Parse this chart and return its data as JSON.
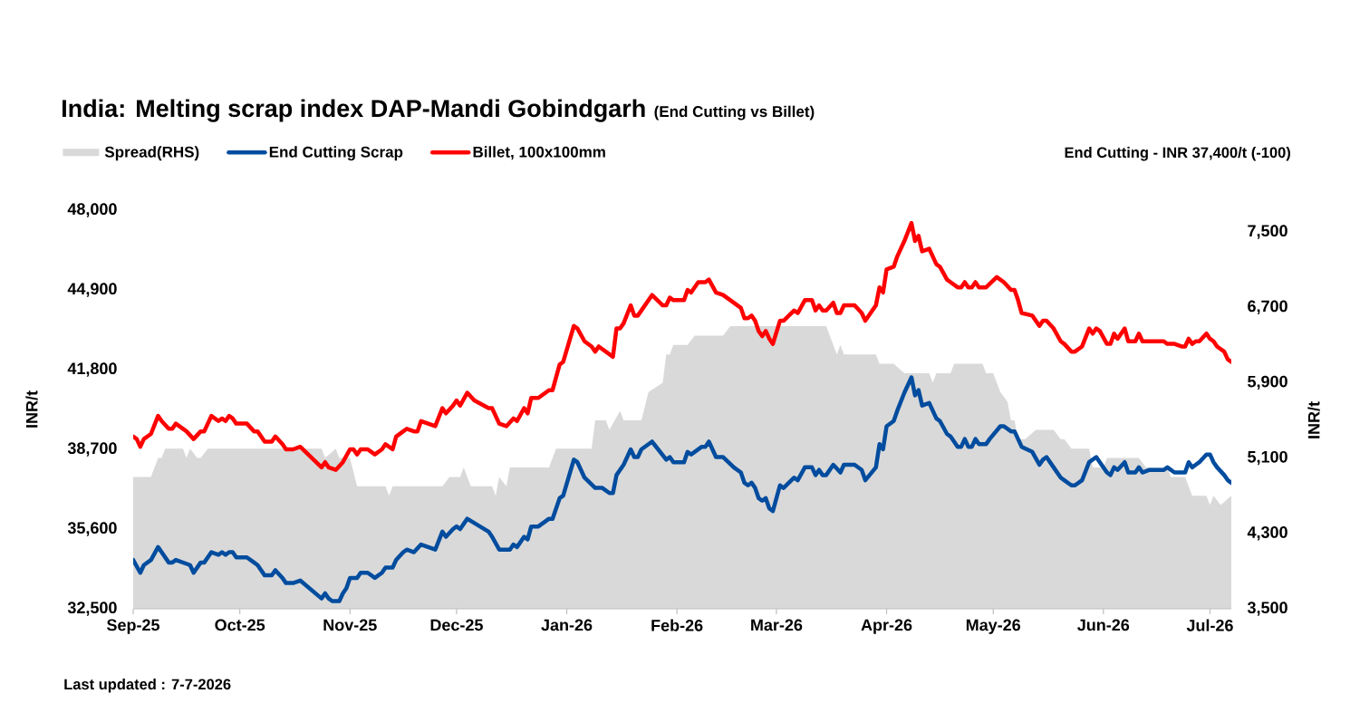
{
  "chart_data": {
    "type": "line",
    "title": "India: Melting scrap index DAP-Mandi Gobindgarh",
    "subtitle": "(End Cutting vs Billet)",
    "ylabel": "INR/t",
    "y2label": "INR/t",
    "xlim": [
      "2025-09-01",
      "2026-07-07"
    ],
    "xticks": [
      {
        "value": "2025-09-01",
        "label": "Sep-25"
      },
      {
        "value": "2025-10-01",
        "label": "Oct-25"
      },
      {
        "value": "2025-11-01",
        "label": "Nov-25"
      },
      {
        "value": "2025-12-01",
        "label": "Dec-25"
      },
      {
        "value": "2026-01-01",
        "label": "Jan-26"
      },
      {
        "value": "2026-02-01",
        "label": "Feb-26"
      },
      {
        "value": "2026-03-01",
        "label": "Mar-26"
      },
      {
        "value": "2026-04-01",
        "label": "Apr-26"
      },
      {
        "value": "2026-05-01",
        "label": "May-26"
      },
      {
        "value": "2026-06-01",
        "label": "Jun-26"
      },
      {
        "value": "2026-07-01",
        "label": "Jul-26"
      }
    ],
    "ylim": [
      32500,
      48000
    ],
    "yticks": [
      {
        "value": 32500,
        "label": "32,500"
      },
      {
        "value": 35600,
        "label": "35,600"
      },
      {
        "value": 38700,
        "label": "38,700"
      },
      {
        "value": 41800,
        "label": "41,800"
      },
      {
        "value": 44900,
        "label": "44,900"
      },
      {
        "value": 48000,
        "label": "48,000"
      }
    ],
    "y2lim": [
      3500,
      7500
    ],
    "y2ticks": [
      {
        "value": 3500,
        "label": "3,500"
      },
      {
        "value": 4300,
        "label": "4,300"
      },
      {
        "value": 5100,
        "label": "5,100"
      },
      {
        "value": 5900,
        "label": "5,900"
      },
      {
        "value": 6700,
        "label": "6,700"
      },
      {
        "value": 7500,
        "label": "7,500"
      }
    ],
    "legend": "top left",
    "series": [
      {
        "name": "Spread(RHS)",
        "type": "area",
        "axis": "y2",
        "color": "#d9d9d9",
        "x": [
          "2025-09-01",
          "2025-09-06",
          "2025-09-08",
          "2025-09-09",
          "2025-09-10",
          "2025-09-15",
          "2025-09-16",
          "2025-09-17",
          "2025-09-19",
          "2025-09-20",
          "2025-09-22",
          "2025-10-24",
          "2025-10-25",
          "2025-10-28",
          "2025-10-29",
          "2025-11-01",
          "2025-11-03",
          "2025-11-11",
          "2025-11-12",
          "2025-11-13",
          "2025-11-27",
          "2025-11-29",
          "2025-12-02",
          "2025-12-03",
          "2025-12-05",
          "2025-12-11",
          "2025-12-12",
          "2025-12-13",
          "2025-12-15",
          "2025-12-16",
          "2025-12-27",
          "2025-12-29",
          "2026-01-08",
          "2026-01-09",
          "2026-01-12",
          "2026-01-13",
          "2026-01-16",
          "2026-01-17",
          "2026-01-22",
          "2026-01-24",
          "2026-01-28",
          "2026-01-29",
          "2026-01-30",
          "2026-01-31",
          "2026-02-04",
          "2026-02-06",
          "2026-02-14",
          "2026-02-16",
          "2026-03-15",
          "2026-03-18",
          "2026-03-19",
          "2026-03-20",
          "2026-03-29",
          "2026-03-30",
          "2026-04-03",
          "2026-04-06",
          "2026-04-13",
          "2026-04-14",
          "2026-04-15",
          "2026-04-19",
          "2026-04-20",
          "2026-04-28",
          "2026-04-29",
          "2026-05-01",
          "2026-05-03",
          "2026-05-05",
          "2026-05-06",
          "2026-05-07",
          "2026-05-08",
          "2026-05-10",
          "2026-05-13",
          "2026-05-18",
          "2026-05-20",
          "2026-05-21",
          "2026-05-23",
          "2026-05-28",
          "2026-05-29",
          "2026-06-01",
          "2026-06-02",
          "2026-06-11",
          "2026-06-13",
          "2026-06-19",
          "2026-06-20",
          "2026-06-24",
          "2026-06-26",
          "2026-06-30",
          "2026-07-01",
          "2026-07-02",
          "2026-07-04",
          "2026-07-07"
        ],
        "values": [
          4900,
          4900,
          5100,
          5100,
          5200,
          5200,
          5100,
          5200,
          5100,
          5100,
          5200,
          5200,
          5100,
          5200,
          5100,
          5100,
          4800,
          4800,
          4700,
          4800,
          4800,
          4900,
          4900,
          5000,
          4800,
          4800,
          4700,
          4900,
          4800,
          5000,
          5000,
          5200,
          5200,
          5500,
          5500,
          5400,
          5600,
          5500,
          5500,
          5800,
          5900,
          6200,
          6200,
          6300,
          6300,
          6400,
          6400,
          6500,
          6500,
          6200,
          6300,
          6200,
          6200,
          6100,
          6100,
          6000,
          6000,
          5900,
          6000,
          6000,
          6100,
          6100,
          6000,
          6000,
          5800,
          5700,
          5500,
          5500,
          5300,
          5300,
          5400,
          5400,
          5300,
          5300,
          5200,
          5200,
          5000,
          5000,
          5100,
          5100,
          5000,
          5000,
          4900,
          4900,
          4700,
          4700,
          4600,
          4700,
          4600,
          4700
        ]
      },
      {
        "name": "End Cutting Scrap",
        "color": "#004c9e",
        "x": [
          "2025-09-01",
          "2025-09-03",
          "2025-09-04",
          "2025-09-06",
          "2025-09-08",
          "2025-09-09",
          "2025-09-11",
          "2025-09-12",
          "2025-09-13",
          "2025-09-15",
          "2025-09-17",
          "2025-09-18",
          "2025-09-20",
          "2025-09-21",
          "2025-09-23",
          "2025-09-25",
          "2025-09-26",
          "2025-09-27",
          "2025-09-28",
          "2025-09-29",
          "2025-09-30",
          "2025-10-03",
          "2025-10-05",
          "2025-10-06",
          "2025-10-08",
          "2025-10-10",
          "2025-10-11",
          "2025-10-13",
          "2025-10-14",
          "2025-10-16",
          "2025-10-18",
          "2025-10-24",
          "2025-10-25",
          "2025-10-26",
          "2025-10-27",
          "2025-10-29",
          "2025-10-30",
          "2025-10-31",
          "2025-11-01",
          "2025-11-03",
          "2025-11-04",
          "2025-11-06",
          "2025-11-08",
          "2025-11-10",
          "2025-11-11",
          "2025-11-13",
          "2025-11-14",
          "2025-11-16",
          "2025-11-17",
          "2025-11-19",
          "2025-11-21",
          "2025-11-23",
          "2025-11-25",
          "2025-11-27",
          "2025-11-28",
          "2025-11-30",
          "2025-12-01",
          "2025-12-02",
          "2025-12-04",
          "2025-12-10",
          "2025-12-11",
          "2025-12-13",
          "2025-12-16",
          "2025-12-17",
          "2025-12-18",
          "2025-12-20",
          "2025-12-21",
          "2025-12-22",
          "2025-12-24",
          "2025-12-27",
          "2025-12-28",
          "2025-12-30",
          "2025-12-31",
          "2026-01-03",
          "2026-01-04",
          "2026-01-06",
          "2026-01-09",
          "2026-01-11",
          "2026-01-13",
          "2026-01-14",
          "2026-01-15",
          "2026-01-17",
          "2026-01-19",
          "2026-01-20",
          "2026-01-21",
          "2026-01-22",
          "2026-01-25",
          "2026-01-29",
          "2026-01-30",
          "2026-01-31",
          "2026-02-03",
          "2026-02-04",
          "2026-02-05",
          "2026-02-08",
          "2026-02-09",
          "2026-02-10",
          "2026-02-12",
          "2026-02-14",
          "2026-02-17",
          "2026-02-19",
          "2026-02-20",
          "2026-02-21",
          "2026-02-22",
          "2026-02-23",
          "2026-02-24",
          "2026-02-25",
          "2026-02-26",
          "2026-02-27",
          "2026-02-28",
          "2026-03-02",
          "2026-03-03",
          "2026-03-06",
          "2026-03-07",
          "2026-03-09",
          "2026-03-11",
          "2026-03-12",
          "2026-03-13",
          "2026-03-14",
          "2026-03-15",
          "2026-03-17",
          "2026-03-19",
          "2026-03-20",
          "2026-03-23",
          "2026-03-25",
          "2026-03-26",
          "2026-03-29",
          "2026-03-30",
          "2026-03-31",
          "2026-04-01",
          "2026-04-03",
          "2026-04-04",
          "2026-04-06",
          "2026-04-08",
          "2026-04-09",
          "2026-04-10",
          "2026-04-11",
          "2026-04-13",
          "2026-04-15",
          "2026-04-16",
          "2026-04-18",
          "2026-04-19",
          "2026-04-21",
          "2026-04-22",
          "2026-04-23",
          "2026-04-24",
          "2026-04-25",
          "2026-04-26",
          "2026-04-27",
          "2026-04-29",
          "2026-04-30",
          "2026-05-03",
          "2026-05-04",
          "2026-05-06",
          "2026-05-07",
          "2026-05-09",
          "2026-05-12",
          "2026-05-14",
          "2026-05-15",
          "2026-05-16",
          "2026-05-18",
          "2026-05-20",
          "2026-05-21",
          "2026-05-23",
          "2026-05-24",
          "2026-05-26",
          "2026-05-28",
          "2026-05-30",
          "2026-05-31",
          "2026-06-02",
          "2026-06-03",
          "2026-06-04",
          "2026-06-05",
          "2026-06-07",
          "2026-06-08",
          "2026-06-10",
          "2026-06-11",
          "2026-06-12",
          "2026-06-14",
          "2026-06-18",
          "2026-06-19",
          "2026-06-21",
          "2026-06-24",
          "2026-06-25",
          "2026-06-26",
          "2026-06-27",
          "2026-06-28",
          "2026-06-30",
          "2026-07-01",
          "2026-07-02",
          "2026-07-03",
          "2026-07-05",
          "2026-07-06",
          "2026-07-07"
        ],
        "values": [
          34400,
          33900,
          34200,
          34400,
          34900,
          34700,
          34300,
          34300,
          34400,
          34300,
          34200,
          33900,
          34300,
          34300,
          34700,
          34600,
          34700,
          34600,
          34700,
          34700,
          34500,
          34500,
          34300,
          34200,
          33800,
          33800,
          34000,
          33700,
          33500,
          33500,
          33600,
          32900,
          33100,
          32900,
          32800,
          32800,
          33100,
          33300,
          33700,
          33700,
          33900,
          33900,
          33700,
          33900,
          34100,
          34100,
          34400,
          34700,
          34800,
          34700,
          35000,
          34900,
          34800,
          35500,
          35300,
          35600,
          35700,
          35600,
          36000,
          35500,
          35300,
          34800,
          34800,
          35000,
          34900,
          35300,
          35200,
          35700,
          35700,
          36000,
          36000,
          36800,
          36900,
          38300,
          38200,
          37600,
          37200,
          37200,
          37000,
          37000,
          37700,
          38100,
          38700,
          38400,
          38400,
          38700,
          39000,
          38300,
          38400,
          38200,
          38200,
          38600,
          38500,
          38800,
          38800,
          39000,
          38400,
          38400,
          38000,
          37800,
          37400,
          37300,
          37400,
          37200,
          36800,
          36700,
          36800,
          36400,
          36300,
          37300,
          37200,
          37600,
          37500,
          38000,
          38000,
          37700,
          37900,
          37700,
          37700,
          38100,
          37800,
          38100,
          38100,
          37900,
          37500,
          38000,
          38900,
          38700,
          39600,
          39800,
          40200,
          40900,
          41500,
          40800,
          41000,
          40400,
          40500,
          39900,
          39800,
          39300,
          39200,
          38800,
          38800,
          39100,
          38800,
          38800,
          39100,
          38900,
          38900,
          39100,
          39600,
          39600,
          39400,
          39400,
          38800,
          38600,
          38100,
          38300,
          38400,
          38000,
          37600,
          37500,
          37300,
          37300,
          37500,
          38200,
          38400,
          38200,
          37800,
          37700,
          38000,
          37900,
          38200,
          37800,
          37800,
          38000,
          37800,
          37900,
          37900,
          38000,
          37800,
          37800,
          38200,
          38000,
          38100,
          38200,
          38500,
          38500,
          38200,
          38000,
          37700,
          37500,
          37400
        ]
      },
      {
        "name": "Billet, 100x100mm",
        "color": "#ff0000",
        "x": [
          "2025-09-01",
          "2025-09-02",
          "2025-09-03",
          "2025-09-04",
          "2025-09-06",
          "2025-09-08",
          "2025-09-09",
          "2025-09-11",
          "2025-09-12",
          "2025-09-13",
          "2025-09-16",
          "2025-09-18",
          "2025-09-20",
          "2025-09-21",
          "2025-09-23",
          "2025-09-25",
          "2025-09-26",
          "2025-09-27",
          "2025-09-28",
          "2025-09-29",
          "2025-09-30",
          "2025-10-03",
          "2025-10-05",
          "2025-10-06",
          "2025-10-08",
          "2025-10-10",
          "2025-10-11",
          "2025-10-13",
          "2025-10-14",
          "2025-10-16",
          "2025-10-18",
          "2025-10-24",
          "2025-10-25",
          "2025-10-26",
          "2025-10-28",
          "2025-10-30",
          "2025-11-01",
          "2025-11-02",
          "2025-11-03",
          "2025-11-04",
          "2025-11-06",
          "2025-11-08",
          "2025-11-10",
          "2025-11-11",
          "2025-11-13",
          "2025-11-14",
          "2025-11-15",
          "2025-11-16",
          "2025-11-17",
          "2025-11-19",
          "2025-11-20",
          "2025-11-21",
          "2025-11-23",
          "2025-11-25",
          "2025-11-27",
          "2025-11-28",
          "2025-11-30",
          "2025-12-01",
          "2025-12-02",
          "2025-12-04",
          "2025-12-06",
          "2025-12-10",
          "2025-12-11",
          "2025-12-13",
          "2025-12-15",
          "2025-12-17",
          "2025-12-18",
          "2025-12-20",
          "2025-12-21",
          "2025-12-22",
          "2025-12-24",
          "2025-12-27",
          "2025-12-28",
          "2025-12-30",
          "2025-12-31",
          "2026-01-03",
          "2026-01-04",
          "2026-01-06",
          "2026-01-08",
          "2026-01-09",
          "2026-01-10",
          "2026-01-14",
          "2026-01-15",
          "2026-01-16",
          "2026-01-17",
          "2026-01-19",
          "2026-01-20",
          "2026-01-21",
          "2026-01-25",
          "2026-01-28",
          "2026-01-29",
          "2026-01-30",
          "2026-01-31",
          "2026-02-03",
          "2026-02-04",
          "2026-02-05",
          "2026-02-07",
          "2026-02-09",
          "2026-02-10",
          "2026-02-12",
          "2026-02-14",
          "2026-02-17",
          "2026-02-19",
          "2026-02-20",
          "2026-02-21",
          "2026-02-22",
          "2026-02-23",
          "2026-02-24",
          "2026-02-25",
          "2026-02-26",
          "2026-02-27",
          "2026-02-28",
          "2026-03-02",
          "2026-03-03",
          "2026-03-06",
          "2026-03-07",
          "2026-03-09",
          "2026-03-11",
          "2026-03-12",
          "2026-03-13",
          "2026-03-14",
          "2026-03-15",
          "2026-03-17",
          "2026-03-18",
          "2026-03-19",
          "2026-03-20",
          "2026-03-23",
          "2026-03-25",
          "2026-03-26",
          "2026-03-29",
          "2026-03-30",
          "2026-03-31",
          "2026-04-01",
          "2026-04-03",
          "2026-04-04",
          "2026-04-06",
          "2026-04-08",
          "2026-04-09",
          "2026-04-10",
          "2026-04-11",
          "2026-04-13",
          "2026-04-15",
          "2026-04-16",
          "2026-04-18",
          "2026-04-19",
          "2026-04-21",
          "2026-04-22",
          "2026-04-23",
          "2026-04-24",
          "2026-04-25",
          "2026-04-26",
          "2026-04-27",
          "2026-04-29",
          "2026-05-02",
          "2026-05-04",
          "2026-05-06",
          "2026-05-07",
          "2026-05-08",
          "2026-05-09",
          "2026-05-12",
          "2026-05-14",
          "2026-05-15",
          "2026-05-16",
          "2026-05-18",
          "2026-05-20",
          "2026-05-21",
          "2026-05-23",
          "2026-05-24",
          "2026-05-26",
          "2026-05-28",
          "2026-05-29",
          "2026-05-30",
          "2026-05-31",
          "2026-06-02",
          "2026-06-03",
          "2026-06-04",
          "2026-06-05",
          "2026-06-07",
          "2026-06-08",
          "2026-06-10",
          "2026-06-11",
          "2026-06-12",
          "2026-06-14",
          "2026-06-18",
          "2026-06-19",
          "2026-06-21",
          "2026-06-23",
          "2026-06-24",
          "2026-06-25",
          "2026-06-26",
          "2026-06-27",
          "2026-06-28",
          "2026-06-30",
          "2026-07-01",
          "2026-07-02",
          "2026-07-03",
          "2026-07-05",
          "2026-07-06",
          "2026-07-07"
        ],
        "values": [
          39200,
          39100,
          38800,
          39100,
          39300,
          40000,
          39800,
          39500,
          39500,
          39700,
          39400,
          39100,
          39400,
          39400,
          40000,
          39800,
          39900,
          39800,
          40000,
          39900,
          39700,
          39700,
          39400,
          39400,
          39000,
          39000,
          39200,
          38900,
          38700,
          38700,
          38800,
          38000,
          38200,
          38000,
          37900,
          38200,
          38700,
          38700,
          38500,
          38700,
          38700,
          38500,
          38700,
          38900,
          38700,
          39200,
          39300,
          39400,
          39500,
          39400,
          39400,
          39800,
          39700,
          39600,
          40300,
          40100,
          40400,
          40600,
          40400,
          40900,
          40600,
          40300,
          40300,
          39700,
          39600,
          39900,
          39800,
          40300,
          40100,
          40700,
          40700,
          41000,
          41000,
          42000,
          42100,
          43500,
          43400,
          42900,
          42700,
          42500,
          42700,
          42300,
          43400,
          43400,
          43600,
          44300,
          43900,
          43900,
          44700,
          44300,
          44300,
          44600,
          44500,
          44500,
          44900,
          44800,
          45200,
          45200,
          45300,
          44800,
          44700,
          44400,
          44200,
          43800,
          43800,
          43900,
          43700,
          43300,
          43100,
          43300,
          43000,
          42800,
          43700,
          43700,
          44100,
          44000,
          44500,
          44500,
          44100,
          44300,
          44100,
          44100,
          44400,
          44000,
          44000,
          44300,
          44300,
          44000,
          43700,
          44300,
          45000,
          44800,
          45700,
          45800,
          46200,
          46800,
          47500,
          46800,
          47000,
          46400,
          46500,
          45900,
          45800,
          45300,
          45200,
          45000,
          45000,
          45200,
          45000,
          45000,
          45200,
          45000,
          45000,
          45400,
          45200,
          44900,
          44900,
          44500,
          44000,
          43900,
          43500,
          43700,
          43700,
          43400,
          42900,
          42800,
          42500,
          42500,
          42700,
          43400,
          43200,
          43400,
          43300,
          42800,
          42800,
          43200,
          43000,
          43400,
          42900,
          42900,
          43200,
          42900,
          42900,
          42900,
          42800,
          42800,
          42700,
          42700,
          43000,
          42800,
          42900,
          42900,
          43200,
          43000,
          42900,
          42700,
          42500,
          42200,
          42100
        ]
      }
    ],
    "annotations": [
      "End Cutting - INR 37,400/t (-100)",
      "Last updated : 7-7-2026"
    ]
  }
}
